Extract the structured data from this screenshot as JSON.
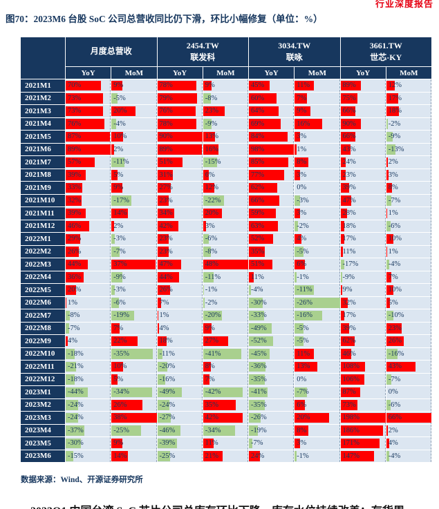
{
  "page": {
    "header_tag": "行业深度报告",
    "title": "图70：2023M6 台股 SoC 公司总营收同比仍下滑，环比小幅修复（单位：%）",
    "source": "数据来源：Wind、开源证券研究所",
    "next_section": "2023Q1 中国台湾 SoC 芯片公司总库存环比下降，库存水位持续改善：存货周"
  },
  "colors": {
    "header_bg": "#17375e",
    "cell_bg": "#dce6f1",
    "positive_bar": "#ff0000",
    "negative_bar": "#a9d08e",
    "accent_red": "#e60012",
    "title_blue": "#17375e"
  },
  "chart_data": {
    "type": "table",
    "title": "图70：2023M6 台股 SoC 公司总营收同比仍下滑，环比小幅修复（单位：%）",
    "unit": "%",
    "sub_headers": [
      "YoY",
      "MoM"
    ],
    "bar_positive_color": "#ff0000",
    "bar_negative_color": "#a9d08e",
    "categories": [
      "2021M1",
      "2021M2",
      "2021M3",
      "2021M4",
      "2021M5",
      "2021M6",
      "2021M7",
      "2021M8",
      "2021M9",
      "2021M10",
      "2021M11",
      "2021M12",
      "2022M1",
      "2022M2",
      "2022M3",
      "2022M4",
      "2022M5",
      "2022M6",
      "2022M7",
      "2022M8",
      "2022M9",
      "2022M10",
      "2022M11",
      "2022M12",
      "2023M1",
      "2023M2",
      "2023M3",
      "2023M4",
      "2023M5",
      "2023M6"
    ],
    "groups": [
      {
        "ticker": "",
        "name": "月度总营收",
        "yoy": [
          70,
          73,
          73,
          76,
          87,
          89,
          57,
          39,
          33,
          32,
          39,
          46,
          29,
          26,
          44,
          36,
          20,
          1,
          -8,
          -7,
          4,
          -18,
          -21,
          -18,
          -44,
          -24,
          -24,
          -37,
          -30,
          -15
        ],
        "mom": [
          9,
          -5,
          20,
          -4,
          10,
          2,
          -11,
          5,
          9,
          -17,
          14,
          2,
          -3,
          -7,
          37,
          -9,
          -3,
          -6,
          -19,
          7,
          22,
          -35,
          10,
          5,
          -34,
          26,
          38,
          -25,
          9,
          14
        ]
      },
      {
        "ticker": "2454.TW",
        "name": "联发科",
        "yoy": [
          78,
          79,
          76,
          78,
          90,
          89,
          51,
          31,
          27,
          23,
          34,
          42,
          23,
          23,
          47,
          44,
          26,
          7,
          1,
          4,
          18,
          -11,
          -20,
          -16,
          -49,
          -24,
          -27,
          -46,
          -39,
          -25
        ],
        "mom": [
          9,
          -8,
          23,
          -9,
          13,
          16,
          -15,
          6,
          12,
          -22,
          20,
          3,
          -6,
          -8,
          48,
          -11,
          -1,
          -2,
          -20,
          9,
          27,
          -41,
          8,
          7,
          -42,
          35,
          42,
          -34,
          11,
          21
        ]
      },
      {
        "ticker": "3034.TW",
        "name": "联咏",
        "yoy": [
          45,
          60,
          64,
          69,
          84,
          98,
          85,
          77,
          62,
          66,
          59,
          63,
          52,
          35,
          51,
          11,
          -4,
          -30,
          -33,
          -49,
          -52,
          -45,
          -36,
          -35,
          -41,
          -35,
          -26,
          -19,
          -7,
          24
        ],
        "mom": [
          11,
          7,
          9,
          16,
          3,
          1,
          8,
          3,
          0,
          -3,
          3,
          -2,
          4,
          -5,
          6,
          -1,
          -11,
          -26,
          -16,
          -5,
          -5,
          11,
          13,
          0,
          -7,
          6,
          20,
          8,
          3,
          -1
        ]
      },
      {
        "ticker": "3661.TW",
        "name": "世芯-KY",
        "yoy": [
          89,
          75,
          66,
          90,
          66,
          43,
          24,
          23,
          39,
          47,
          28,
          18,
          17,
          11,
          -17,
          -9,
          9,
          32,
          17,
          39,
          62,
          46,
          108,
          106,
          87,
          73,
          198,
          186,
          171,
          147
        ],
        "mom": [
          12,
          17,
          18,
          -2,
          -9,
          -13,
          2,
          3,
          8,
          -7,
          1,
          -6,
          10,
          1,
          -4,
          7,
          10,
          5,
          -10,
          23,
          26,
          -16,
          43,
          -7,
          0,
          -6,
          66,
          2,
          4,
          -4
        ]
      }
    ]
  }
}
